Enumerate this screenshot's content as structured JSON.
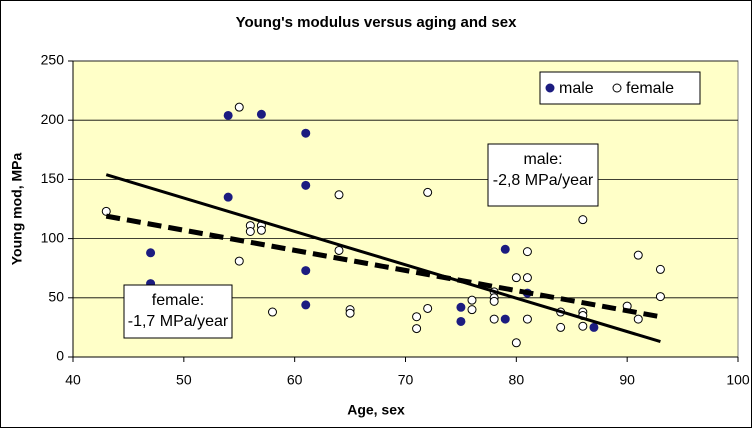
{
  "chart_data": {
    "type": "scatter",
    "title": "Young's modulus versus aging and sex",
    "x_label": "Age, sex",
    "y_label": "Young mod, MPa",
    "xlim": [
      40,
      100
    ],
    "xticks": [
      40,
      50,
      60,
      70,
      80,
      90,
      100
    ],
    "ylim": [
      0,
      250
    ],
    "yticks": [
      0,
      50,
      100,
      150,
      200,
      250
    ],
    "grid": true,
    "legend": "upper right",
    "series": [
      {
        "name": "male",
        "color": "#1c1c80",
        "x": [
          54,
          57,
          54,
          61,
          61,
          61,
          61,
          47,
          47,
          75,
          75,
          79,
          79,
          81,
          87
        ],
        "y": [
          204,
          205,
          135,
          189,
          145,
          73,
          44,
          88,
          62,
          42,
          30,
          91,
          32,
          54,
          25
        ]
      },
      {
        "name": "female",
        "color": "#ffffff",
        "x": [
          43,
          55,
          55,
          56,
          56,
          57,
          57,
          58,
          64,
          64,
          65,
          65,
          71,
          71,
          72,
          72,
          76,
          76,
          78,
          78,
          78,
          78,
          80,
          80,
          81,
          81,
          81,
          84,
          84,
          86,
          86,
          86,
          86,
          90,
          91,
          91,
          93,
          93
        ],
        "y": [
          123,
          211,
          81,
          111,
          106,
          111,
          107,
          38,
          137,
          90,
          40,
          37,
          34,
          24,
          139,
          41,
          48,
          40,
          55,
          50,
          32,
          47,
          67,
          12,
          89,
          67,
          32,
          38,
          25,
          116,
          38,
          35,
          26,
          43,
          86,
          32,
          74,
          51
        ]
      }
    ],
    "trendlines": [
      {
        "series": "male",
        "style": "solid",
        "x": [
          43,
          93
        ],
        "y": [
          154,
          13
        ],
        "label": [
          "male:",
          "-2,8 MPa/year"
        ]
      },
      {
        "series": "female",
        "style": "dashed",
        "x": [
          43,
          93
        ],
        "y": [
          119,
          34
        ],
        "label": [
          "female:",
          "-1,7 MPa/year"
        ]
      }
    ]
  }
}
